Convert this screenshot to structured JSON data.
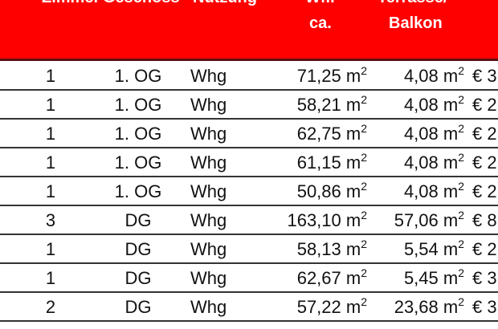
{
  "header": {
    "cut_labels": [
      "Zimmer",
      "Geschoss",
      "Nutzung",
      "Wfl.",
      "Terrasse/"
    ],
    "wfl_line2": "ca.",
    "terrasse_line2": "Balkon",
    "background_color": "#fe0000"
  },
  "rows": [
    {
      "zimmer": "1",
      "geschoss": "1. OG",
      "nutzung": "Whg",
      "wfl": "71,25 m",
      "terrasse": "4,08 m",
      "preis": "€ 3"
    },
    {
      "zimmer": "1",
      "geschoss": "1. OG",
      "nutzung": "Whg",
      "wfl": "58,21 m",
      "terrasse": "4,08 m",
      "preis": "€ 2"
    },
    {
      "zimmer": "1",
      "geschoss": "1. OG",
      "nutzung": "Whg",
      "wfl": "62,75 m",
      "terrasse": "4,08 m",
      "preis": "€ 2"
    },
    {
      "zimmer": "1",
      "geschoss": "1. OG",
      "nutzung": "Whg",
      "wfl": "61,15 m",
      "terrasse": "4,08 m",
      "preis": "€ 2"
    },
    {
      "zimmer": "1",
      "geschoss": "1. OG",
      "nutzung": "Whg",
      "wfl": "50,86 m",
      "terrasse": "4,08 m",
      "preis": "€ 2"
    },
    {
      "zimmer": "3",
      "geschoss": "DG",
      "nutzung": "Whg",
      "wfl": "163,10 m",
      "terrasse": "57,06 m",
      "preis": "€ 8"
    },
    {
      "zimmer": "1",
      "geschoss": "DG",
      "nutzung": "Whg",
      "wfl": "58,13 m",
      "terrasse": "5,54 m",
      "preis": "€ 2"
    },
    {
      "zimmer": "1",
      "geschoss": "DG",
      "nutzung": "Whg",
      "wfl": "62,67 m",
      "terrasse": "5,45 m",
      "preis": "€ 3"
    },
    {
      "zimmer": "2",
      "geschoss": "DG",
      "nutzung": "Whg",
      "wfl": "57,22 m",
      "terrasse": "23,68 m",
      "preis": "€ 3"
    }
  ],
  "unit_sup": "2"
}
